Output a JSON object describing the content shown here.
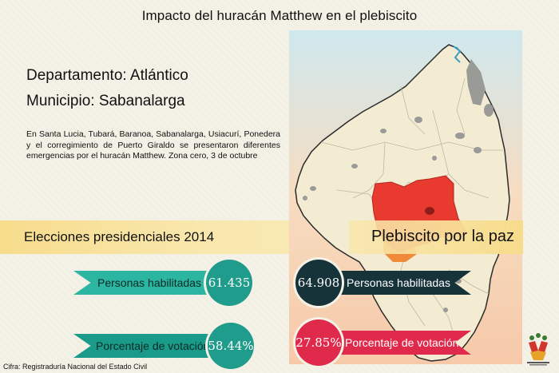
{
  "title": "Impacto del huracán Matthew en el plebiscito",
  "departamento": "Departamento: Atlántico",
  "municipio": "Municipio: Sabanalarga",
  "description": "En Santa Lucia, Tubará, Baranoa, Sabanalarga, Usiacurí, Ponedera y el corregimiento de Puerto Giraldo se presentaron diferentes emergencias por el huracán Matthew. Zona cero, 3 de octubre",
  "elecciones": {
    "heading": "Elecciones presidenciales 2014",
    "habilitadas_label": "Personas habilitadas",
    "habilitadas_value": "61.435",
    "votacion_label": "Porcentaje de votación",
    "votacion_value": "58.44%"
  },
  "plebiscito": {
    "heading": "Plebiscito por la paz",
    "habilitadas_label": "Personas habilitadas",
    "habilitadas_value": "64.908",
    "votacion_label": "Porcentaje de votación",
    "votacion_value": "27.85%"
  },
  "source": "Cifra: Registraduría Nacional del Estado Civil",
  "colors": {
    "teal": "#1f9c8b",
    "dark": "#17333a",
    "red": "#e02a4c",
    "highlight": "#e83a2f",
    "map_land": "#f3ecd2",
    "sea": "#d9eef0"
  }
}
